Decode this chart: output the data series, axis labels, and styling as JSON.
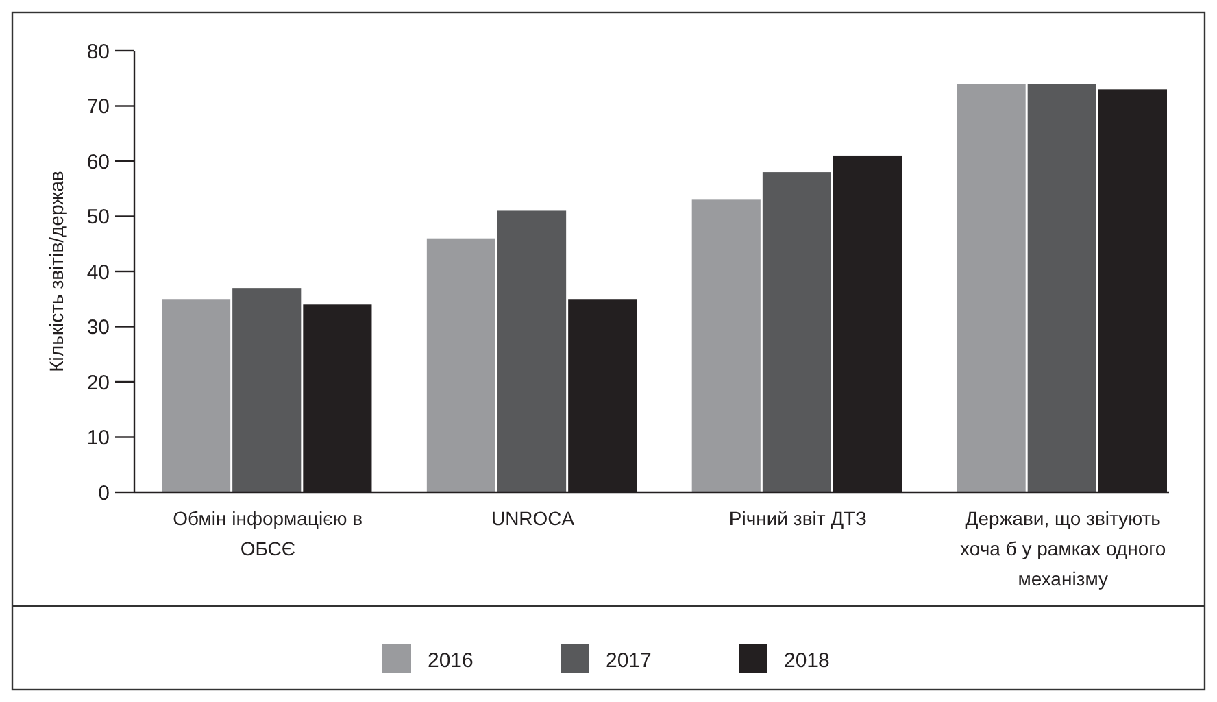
{
  "chart_data": {
    "type": "bar",
    "ylabel": "Кількість звітів/держав",
    "categories": [
      "Обмін інформацією в ОБСЄ",
      "UNROCA",
      "Річний звіт ДТЗ",
      "Держави, що звітують хоча б у рамках одного механізму"
    ],
    "series": [
      {
        "name": "2016",
        "color": "#9a9b9e",
        "values": [
          35,
          46,
          53,
          74
        ]
      },
      {
        "name": "2017",
        "color": "#58595b",
        "values": [
          37,
          51,
          58,
          74
        ]
      },
      {
        "name": "2018",
        "color": "#231f20",
        "values": [
          34,
          35,
          61,
          73
        ]
      }
    ],
    "ylim": [
      0,
      80
    ],
    "yticks": [
      0,
      10,
      20,
      30,
      40,
      50,
      60,
      70,
      80
    ],
    "grid": false,
    "legend": "bottom"
  }
}
